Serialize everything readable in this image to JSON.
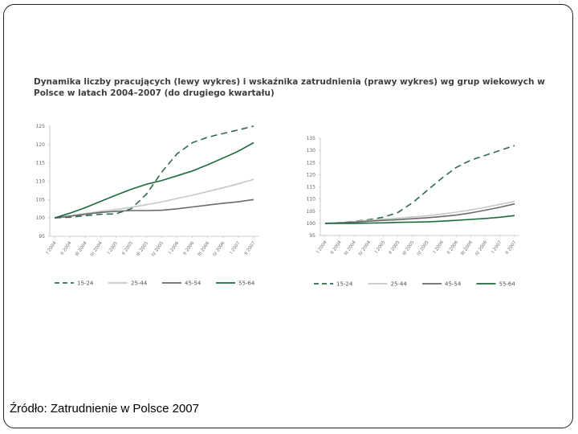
{
  "title": "Dynamika liczby pracujących (lewy wykres) i wskaźnika zatrudnienia (prawy wykres) wg grup wiekowych w Polsce w latach 2004–2007 (do drugiego kwartału)",
  "source": "Źródło: Zatrudnienie w Polsce 2007",
  "colors": {
    "s1524": "#2f6b47",
    "s2544": "#c4c8c6",
    "s4554": "#6a6a6a",
    "s5564": "#1d6a3e"
  },
  "chart_data": [
    {
      "type": "line",
      "categories": [
        "I 2004",
        "II 2004",
        "III 2004",
        "IV 2004",
        "I 2005",
        "II 2005",
        "III 2005",
        "IV 2005",
        "I 2006",
        "II 2006",
        "III 2006",
        "IV 2006",
        "I 2007",
        "II 2007"
      ],
      "ylim": [
        95,
        125
      ],
      "yticks": [
        95,
        100,
        105,
        110,
        115,
        120,
        125
      ],
      "series": [
        {
          "name": "15-24",
          "key": "s1524",
          "dash": "dashed",
          "values": [
            100,
            100.2,
            100.6,
            101,
            101.1,
            102.5,
            106.5,
            112.5,
            117.5,
            120.5,
            122,
            123,
            124,
            125
          ]
        },
        {
          "name": "25-44",
          "key": "s2544",
          "dash": "solid",
          "values": [
            100,
            100.6,
            101.2,
            101.8,
            102.3,
            102.9,
            103.6,
            104.4,
            105.3,
            106.2,
            107.2,
            108.2,
            109.3,
            110.5
          ]
        },
        {
          "name": "45-54",
          "key": "s4554",
          "dash": "solid",
          "values": [
            100,
            100.5,
            101,
            101.5,
            101.8,
            102,
            102,
            102.1,
            102.5,
            103,
            103.5,
            104,
            104.4,
            105
          ]
        },
        {
          "name": "55-64",
          "key": "s5564",
          "dash": "solid",
          "values": [
            100,
            101.3,
            102.8,
            104.5,
            106.2,
            107.8,
            109.2,
            110.2,
            111.5,
            112.8,
            114.5,
            116.3,
            118.2,
            120.5
          ]
        }
      ],
      "legend": "bottom"
    },
    {
      "type": "line",
      "categories": [
        "I 2004",
        "II 2004",
        "III 2004",
        "IV 2004",
        "I 2005",
        "II 2005",
        "III 2005",
        "IV 2005",
        "I 2006",
        "II 2006",
        "III 2006",
        "IV 2006",
        "I 2007",
        "II 2007"
      ],
      "ylim": [
        95,
        135
      ],
      "yticks": [
        95,
        100,
        105,
        110,
        115,
        120,
        125,
        130,
        135
      ],
      "series": [
        {
          "name": "15-24",
          "key": "s1524",
          "dash": "dashed",
          "values": [
            100,
            100.3,
            100.8,
            101.5,
            102.5,
            104.5,
            108.5,
            113.5,
            118.5,
            123,
            126,
            128,
            130,
            132
          ]
        },
        {
          "name": "25-44",
          "key": "s2544",
          "dash": "solid",
          "values": [
            100,
            100.3,
            100.7,
            101.2,
            101.7,
            102.1,
            102.6,
            103.1,
            103.8,
            104.6,
            105.5,
            106.6,
            107.8,
            109
          ]
        },
        {
          "name": "45-54",
          "key": "s4554",
          "dash": "solid",
          "values": [
            100,
            100.2,
            100.5,
            100.9,
            101.2,
            101.5,
            101.9,
            102.3,
            102.8,
            103.4,
            104.3,
            105.4,
            106.6,
            108
          ]
        },
        {
          "name": "55-64",
          "key": "s5564",
          "dash": "solid",
          "values": [
            100,
            100,
            100,
            100.1,
            100.2,
            100.4,
            100.5,
            100.6,
            100.9,
            101.2,
            101.6,
            102,
            102.5,
            103.2
          ]
        }
      ],
      "legend": "bottom"
    }
  ]
}
